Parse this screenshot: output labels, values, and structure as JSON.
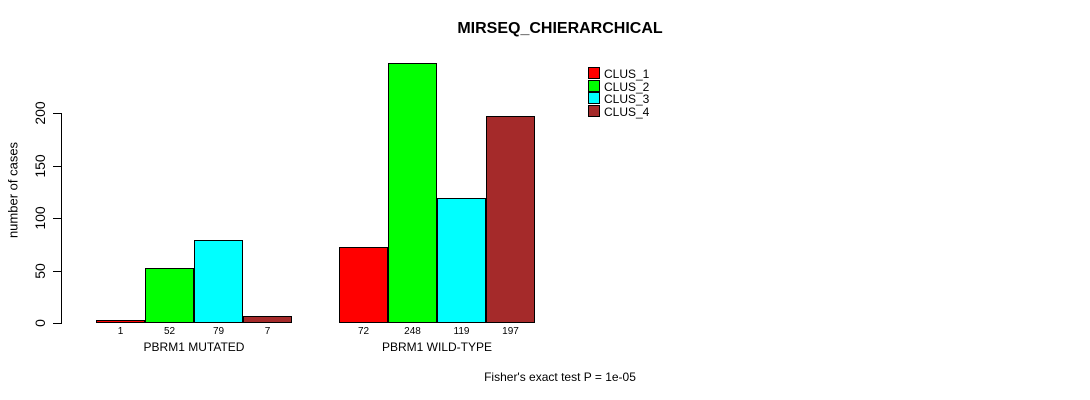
{
  "page": {
    "background_color": "#FFFFFF",
    "text_color": "#000000"
  },
  "chart_data": {
    "type": "bar",
    "title": "MIRSEQ_CHIERARCHICAL",
    "ylabel": "number of cases",
    "xlabel": "",
    "footnote": "Fisher's exact test P = 1e-05",
    "grid": false,
    "legend_position": "top-right",
    "ylim": [
      0,
      200
    ],
    "yticks": [
      0,
      50,
      100,
      150,
      200
    ],
    "categories": [
      "PBRM1 MUTATED",
      "PBRM1 WILD-TYPE"
    ],
    "series": [
      {
        "name": "CLUS_1",
        "color": "#FF0000",
        "values": [
          1,
          72
        ]
      },
      {
        "name": "CLUS_2",
        "color": "#00FF00",
        "values": [
          52,
          248
        ]
      },
      {
        "name": "CLUS_3",
        "color": "#00FFFF",
        "values": [
          79,
          119
        ]
      },
      {
        "name": "CLUS_4",
        "color": "#A52A2A",
        "values": [
          7,
          197
        ]
      }
    ],
    "bar_value_labels": [
      [
        "1",
        "52",
        "79",
        "7"
      ],
      [
        "72",
        "248",
        "119",
        "197"
      ]
    ]
  }
}
